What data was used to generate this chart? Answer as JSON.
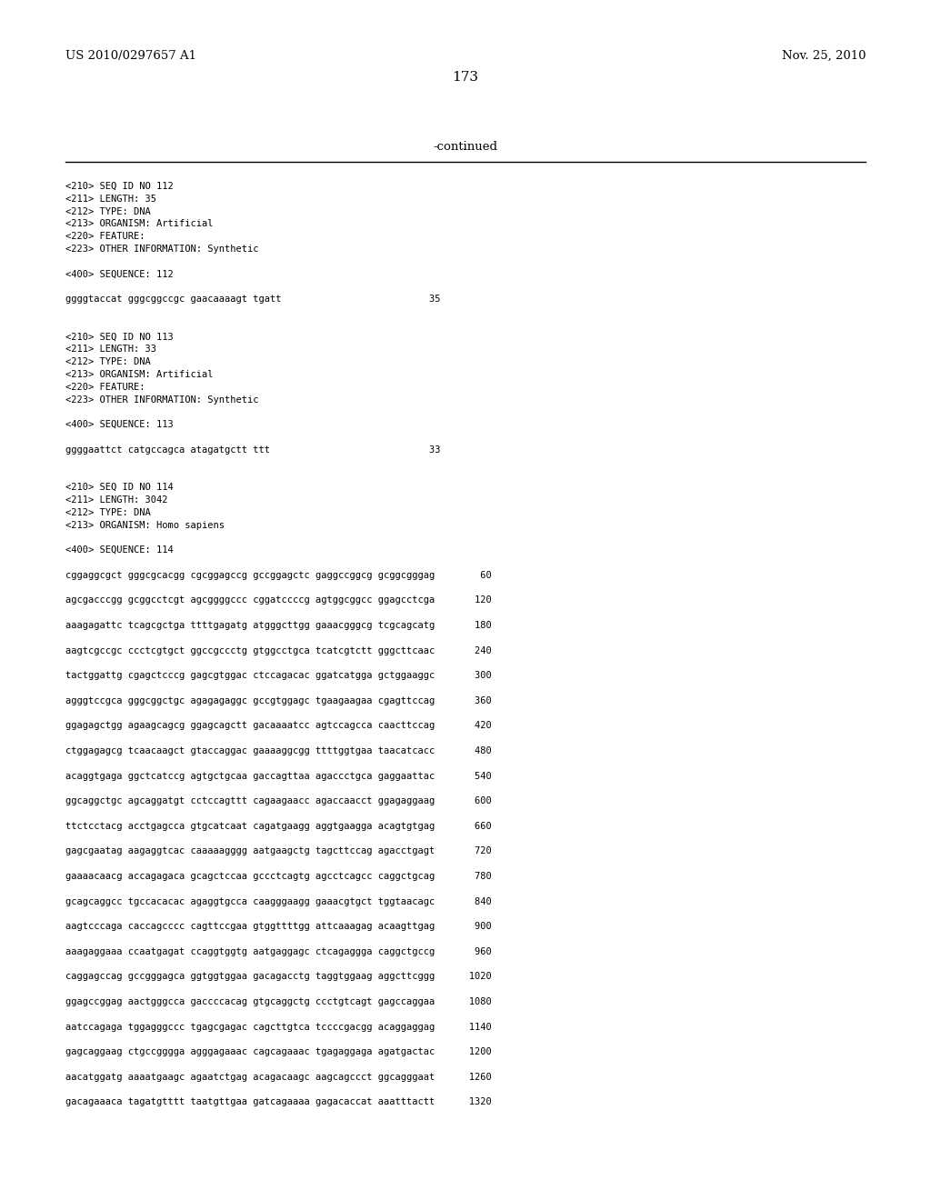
{
  "header_left": "US 2010/0297657 A1",
  "header_right": "Nov. 25, 2010",
  "page_number": "173",
  "continued_text": "-continued",
  "background_color": "#ffffff",
  "text_color": "#000000",
  "monospace_lines": [
    "<210> SEQ ID NO 112",
    "<211> LENGTH: 35",
    "<212> TYPE: DNA",
    "<213> ORGANISM: Artificial",
    "<220> FEATURE:",
    "<223> OTHER INFORMATION: Synthetic",
    "",
    "<400> SEQUENCE: 112",
    "",
    "ggggtaccat gggcggccgc gaacaaaagt tgatt                          35",
    "",
    "",
    "<210> SEQ ID NO 113",
    "<211> LENGTH: 33",
    "<212> TYPE: DNA",
    "<213> ORGANISM: Artificial",
    "<220> FEATURE:",
    "<223> OTHER INFORMATION: Synthetic",
    "",
    "<400> SEQUENCE: 113",
    "",
    "ggggaattct catgccagca atagatgctt ttt                            33",
    "",
    "",
    "<210> SEQ ID NO 114",
    "<211> LENGTH: 3042",
    "<212> TYPE: DNA",
    "<213> ORGANISM: Homo sapiens",
    "",
    "<400> SEQUENCE: 114",
    "",
    "cggaggcgct gggcgcacgg cgcggagccg gccggagctc gaggccggcg gcggcgggag        60",
    "",
    "agcgacccgg gcggcctcgt agcggggccc cggatccccg agtggcggcc ggagcctcga       120",
    "",
    "aaagagattc tcagcgctga ttttgagatg atgggcttgg gaaacgggcg tcgcagcatg       180",
    "",
    "aagtcgccgc ccctcgtgct ggccgccctg gtggcctgca tcatcgtctt gggcttcaac       240",
    "",
    "tactggattg cgagctcccg gagcgtggac ctccagacac ggatcatgga gctggaaggc       300",
    "",
    "agggtccgca gggcggctgc agagagaggc gccgtggagc tgaagaagaa cgagttccag       360",
    "",
    "ggagagctgg agaagcagcg ggagcagctt gacaaaatcc agtccagcca caacttccag       420",
    "",
    "ctggagagcg tcaacaagct gtaccaggac gaaaaggcgg ttttggtgaa taacatcacc       480",
    "",
    "acaggtgaga ggctcatccg agtgctgcaa gaccagttaa agaccctgca gaggaattac       540",
    "",
    "ggcaggctgc agcaggatgt cctccagttt cagaagaacc agaccaacct ggagaggaag       600",
    "",
    "ttctcctacg acctgagcca gtgcatcaat cagatgaagg aggtgaagga acagtgtgag       660",
    "",
    "gagcgaatag aagaggtcac caaaaagggg aatgaagctg tagcttccag agacctgagt       720",
    "",
    "gaaaacaacg accagagaca gcagctccaa gccctcagtg agcctcagcc caggctgcag       780",
    "",
    "gcagcaggcc tgccacacac agaggtgcca caagggaagg gaaacgtgct tggtaacagc       840",
    "",
    "aagtcccaga caccagcccc cagttccgaa gtggttttgg attcaaagag acaagttgag       900",
    "",
    "aaagaggaaa ccaatgagat ccaggtggtg aatgaggagc ctcagaggga caggctgccg       960",
    "",
    "caggagccag gccgggagca ggtggtggaa gacagacctg taggtggaag aggcttcggg      1020",
    "",
    "ggagccggag aactgggcca gaccccacag gtgcaggctg ccctgtcagt gagccaggaa      1080",
    "",
    "aatccagaga tggagggccc tgagcgagac cagcttgtca tccccgacgg acaggaggag      1140",
    "",
    "gagcaggaag ctgccgggga agggagaaac cagcagaaac tgagaggaga agatgactac      1200",
    "",
    "aacatggatg aaaatgaagc agaatctgag acagacaagc aagcagccct ggcagggaat      1260",
    "",
    "gacagaaaca tagatgtttt taatgttgaa gatcagaaaa gagacaccat aaatttactt      1320"
  ],
  "header_font_size": 9.5,
  "page_num_font_size": 11,
  "continued_font_size": 9.5,
  "mono_font_size": 7.5
}
